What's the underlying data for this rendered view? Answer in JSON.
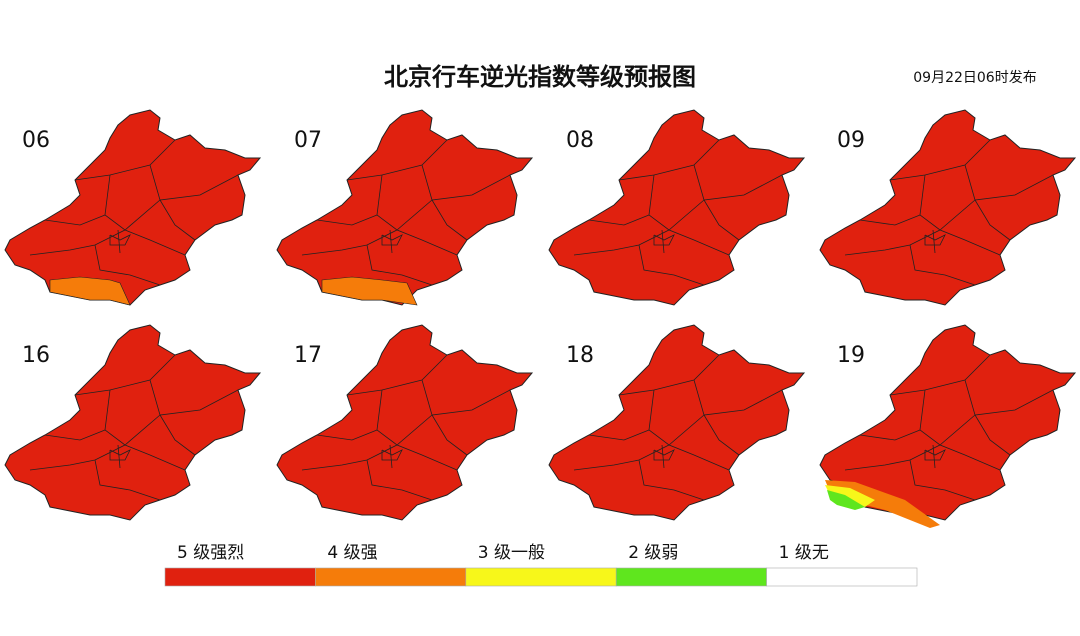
{
  "title": "北京行车逆光指数等级预报图",
  "issued": "09月22日06时发布",
  "panels": [
    {
      "label": "06"
    },
    {
      "label": "07"
    },
    {
      "label": "08"
    },
    {
      "label": "09"
    },
    {
      "label": "16"
    },
    {
      "label": "17"
    },
    {
      "label": "18"
    },
    {
      "label": "19"
    }
  ],
  "legend": [
    {
      "label": "5 级强烈",
      "color": "#e0210f"
    },
    {
      "label": "4 级强",
      "color": "#f57c0a"
    },
    {
      "label": "3 级一般",
      "color": "#f7f71a"
    },
    {
      "label": "2 级弱",
      "color": "#5fe61e"
    },
    {
      "label": "1 级无",
      "color": "#ffffff"
    }
  ]
}
